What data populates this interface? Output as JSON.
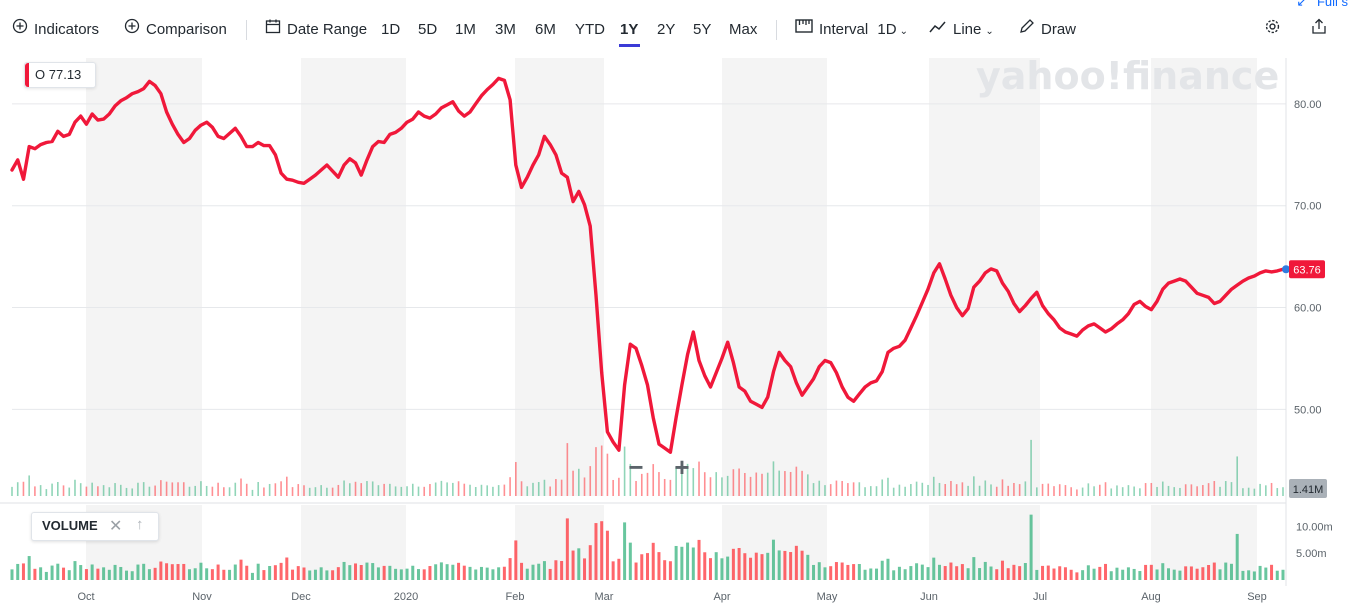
{
  "toolbar": {
    "indicators": "Indicators",
    "comparison": "Comparison",
    "date_range": "Date Range",
    "ranges": [
      "1D",
      "5D",
      "1M",
      "3M",
      "6M",
      "YTD",
      "1Y",
      "2Y",
      "5Y",
      "Max"
    ],
    "active_range": "1Y",
    "interval_label": "Interval",
    "interval_value": "1D",
    "line_label": "Line",
    "draw_label": "Draw",
    "fullscreen_label": "Full s"
  },
  "watermark": "yahoo!finance",
  "legend": {
    "open_label": "O",
    "open_value": "77.13"
  },
  "volume_legend": {
    "label": "VOLUME"
  },
  "current_price_label": "63.76",
  "current_volume_label": "1.41M",
  "colors": {
    "price_line": "#f0183a",
    "up_volume": "#35b37e",
    "down_volume": "#ff333a",
    "accent": "#0f69ff",
    "band": "#f4f4f4"
  },
  "chart_data": {
    "type": "line",
    "x_tick_labels": [
      "Oct",
      "Nov",
      "Dec",
      "2020",
      "Feb",
      "Mar",
      "Apr",
      "May",
      "Jun",
      "Jul",
      "Aug",
      "Sep"
    ],
    "price_axis": {
      "ticks": [
        "80.00",
        "70.00",
        "60.00",
        "50.00"
      ],
      "tick_values": [
        80,
        70,
        60,
        50
      ],
      "range": [
        41.5,
        84.5
      ]
    },
    "volume_axis": {
      "ticks": [
        "10.00m",
        "5.00m"
      ],
      "tick_values": [
        10,
        5
      ]
    },
    "series": [
      {
        "values": [
          73.5,
          74.5,
          72.6,
          75.8,
          75.6,
          76.0,
          76.2,
          76.3,
          77.3,
          76.8,
          77.0,
          78.2,
          78.8,
          78.0,
          79.0,
          78.4,
          78.5,
          79.0,
          79.8,
          80.3,
          80.6,
          81.0,
          81.2,
          81.5,
          82.2,
          81.8,
          81.0,
          79.2,
          78.0,
          77.0,
          76.2,
          76.6,
          77.4,
          77.9,
          78.2,
          77.7,
          76.8,
          76.6,
          77.1,
          77.6,
          76.8,
          75.8,
          75.8,
          76.2,
          75.9,
          75.9,
          75.0,
          73.2,
          72.6,
          72.5,
          72.3,
          72.2,
          72.6,
          73.0,
          73.5,
          74.0,
          73.4,
          72.8,
          74.0,
          74.6,
          74.2,
          73.0,
          74.5,
          75.8,
          76.3,
          76.2,
          77.0,
          77.2,
          77.6,
          78.2,
          78.5,
          79.2,
          78.8,
          78.6,
          79.0,
          79.6,
          79.9,
          80.2,
          79.3,
          78.8,
          79.2,
          80.0,
          80.8,
          81.4,
          81.9,
          82.5,
          82.3,
          80.4,
          74.0,
          71.8,
          72.8,
          74.0,
          75.0,
          76.8,
          76.0,
          75.0,
          73.2,
          72.8,
          70.4,
          71.4,
          70.1,
          68.0,
          61.2,
          53.6,
          47.8,
          46.8,
          46.0,
          52.4,
          56.4,
          56.0,
          54.3,
          52.4,
          49.2,
          46.6,
          46.2,
          45.8,
          49.2,
          52.4,
          55.4,
          57.6,
          54.8,
          53.3,
          52.2,
          53.6,
          55.0,
          56.6,
          54.6,
          52.2,
          51.8,
          50.8,
          50.5,
          50.2,
          51.2,
          53.7,
          55.6,
          54.8,
          54.2,
          52.6,
          51.4,
          52.2,
          53.0,
          54.2,
          54.8,
          54.6,
          53.6,
          52.2,
          51.2,
          50.8,
          51.5,
          52.2,
          52.6,
          52.8,
          53.7,
          55.6,
          56.0,
          56.2,
          56.8,
          58.0,
          59.2,
          60.5,
          61.8,
          63.4,
          64.3,
          62.8,
          61.2,
          60.0,
          59.2,
          59.9,
          62.0,
          62.6,
          63.4,
          63.8,
          63.6,
          62.4,
          61.6,
          60.4,
          59.6,
          60.2,
          60.9,
          61.5,
          60.2,
          59.4,
          58.8,
          58.0,
          57.6,
          57.4,
          57.2,
          57.8,
          58.2,
          58.4,
          58.0,
          57.6,
          57.9,
          58.4,
          58.8,
          59.4,
          60.3,
          60.6,
          60.1,
          59.8,
          60.6,
          61.8,
          62.4,
          62.6,
          62.8,
          62.6,
          62.0,
          61.4,
          61.2,
          61.0,
          60.4,
          60.6,
          61.2,
          61.8,
          62.2,
          62.6,
          62.9,
          63.1,
          63.4,
          63.6,
          63.5,
          63.6,
          63.76
        ]
      }
    ]
  }
}
